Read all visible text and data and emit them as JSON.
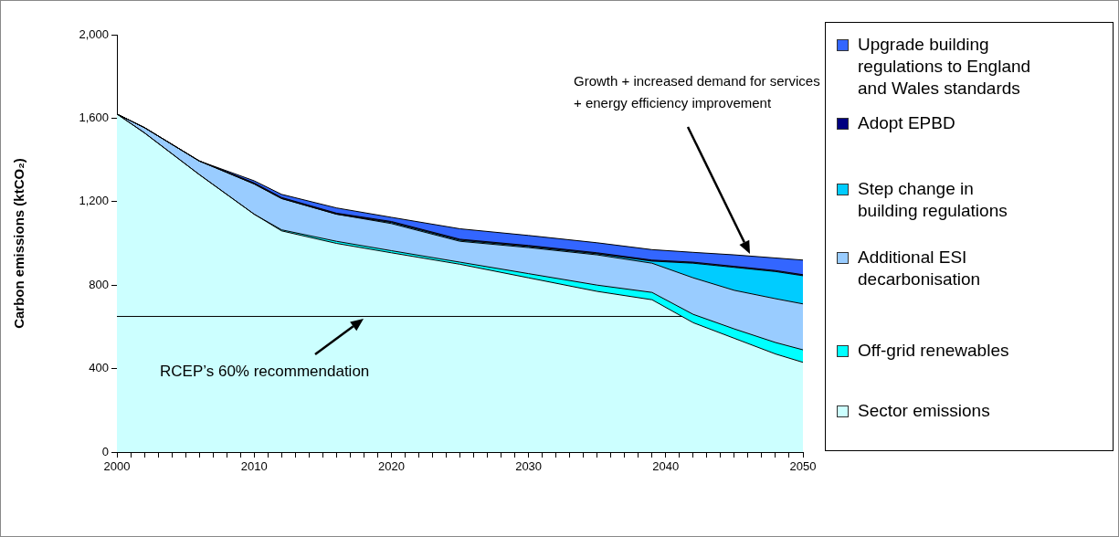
{
  "chart_data": {
    "type": "area",
    "stacked": true,
    "ylabel": "Carbon emissions (ktCO₂)",
    "x": [
      2000,
      2002,
      2006,
      2010,
      2012,
      2016,
      2020,
      2025,
      2030,
      2035,
      2039,
      2042,
      2045,
      2048,
      2050
    ],
    "series": [
      {
        "name": "Sector emissions",
        "color": "#ccffff",
        "values": [
          1620,
          1530,
          1330,
          1140,
          1060,
          1000,
          955,
          900,
          835,
          770,
          730,
          620,
          545,
          470,
          430
        ]
      },
      {
        "name": "Off-grid renewables",
        "color": "#00ffff",
        "values": [
          0,
          0,
          0,
          0,
          5,
          10,
          10,
          10,
          20,
          30,
          35,
          40,
          45,
          55,
          60
        ]
      },
      {
        "name": "Additional ESI decarbonisation",
        "color": "#99ccff",
        "values": [
          0,
          25,
          65,
          145,
          150,
          130,
          130,
          100,
          125,
          145,
          140,
          175,
          185,
          210,
          220
        ]
      },
      {
        "name": "Step change in building regulations",
        "color": "#00ccff",
        "values": [
          0,
          0,
          0,
          0,
          0,
          0,
          5,
          5,
          5,
          5,
          10,
          70,
          110,
          130,
          135
        ]
      },
      {
        "name": "Adopt EPBD",
        "color": "#000080",
        "values": [
          0,
          0,
          0,
          5,
          5,
          5,
          5,
          5,
          5,
          5,
          5,
          5,
          5,
          5,
          5
        ]
      },
      {
        "name": "Upgrade building regulations to England and Wales standards",
        "color": "#3366ff",
        "values": [
          0,
          0,
          0,
          10,
          15,
          25,
          20,
          50,
          48,
          48,
          50,
          47,
          55,
          60,
          70
        ]
      }
    ],
    "xlim": [
      2000,
      2050
    ],
    "xticks": [
      2000,
      {
        "value": 2001,
        "label": null
      },
      {
        "value": 2002,
        "label": null
      },
      {
        "value": 2003,
        "label": null
      },
      {
        "value": 2004,
        "label": null
      },
      {
        "value": 2005,
        "label": null
      },
      {
        "value": 2006,
        "label": null
      },
      {
        "value": 2007,
        "label": null
      },
      {
        "value": 2008,
        "label": null
      },
      {
        "value": 2009,
        "label": null
      },
      2010,
      {
        "value": 2011,
        "label": null
      },
      {
        "value": 2012,
        "label": null
      },
      {
        "value": 2013,
        "label": null
      },
      {
        "value": 2014,
        "label": null
      },
      {
        "value": 2015,
        "label": null
      },
      {
        "value": 2016,
        "label": null
      },
      {
        "value": 2017,
        "label": null
      },
      {
        "value": 2018,
        "label": null
      },
      {
        "value": 2019,
        "label": null
      },
      2020,
      {
        "value": 2021,
        "label": null
      },
      {
        "value": 2022,
        "label": null
      },
      {
        "value": 2023,
        "label": null
      },
      {
        "value": 2024,
        "label": null
      },
      {
        "value": 2025,
        "label": null
      },
      {
        "value": 2026,
        "label": null
      },
      {
        "value": 2027,
        "label": null
      },
      {
        "value": 2028,
        "label": null
      },
      {
        "value": 2029,
        "label": null
      },
      2030,
      {
        "value": 2031,
        "label": null
      },
      {
        "value": 2032,
        "label": null
      },
      {
        "value": 2033,
        "label": null
      },
      {
        "value": 2034,
        "label": null
      },
      {
        "value": 2035,
        "label": null
      },
      {
        "value": 2036,
        "label": null
      },
      {
        "value": 2037,
        "label": null
      },
      {
        "value": 2038,
        "label": null
      },
      {
        "value": 2039,
        "label": null
      },
      2040,
      {
        "value": 2041,
        "label": null
      },
      {
        "value": 2042,
        "label": null
      },
      {
        "value": 2043,
        "label": null
      },
      {
        "value": 2044,
        "label": null
      },
      {
        "value": 2045,
        "label": null
      },
      {
        "value": 2046,
        "label": null
      },
      {
        "value": 2047,
        "label": null
      },
      {
        "value": 2048,
        "label": null
      },
      {
        "value": 2049,
        "label": null
      },
      2050
    ],
    "ylim": [
      0,
      2000
    ],
    "yticks": [
      0,
      400,
      800,
      {
        "value": 1200,
        "label": "1,200"
      },
      {
        "value": 1600,
        "label": "1,600"
      },
      {
        "value": 2000,
        "label": "2,000"
      }
    ],
    "grid": false,
    "legend": "right",
    "ref_lines": [
      {
        "axis": "y",
        "value": 650,
        "label": "RCEP’s 60% recommendation",
        "color": "#000000"
      }
    ],
    "annotations": [
      "Growth + increased demand for services\n+ energy efficiency improvement"
    ]
  }
}
